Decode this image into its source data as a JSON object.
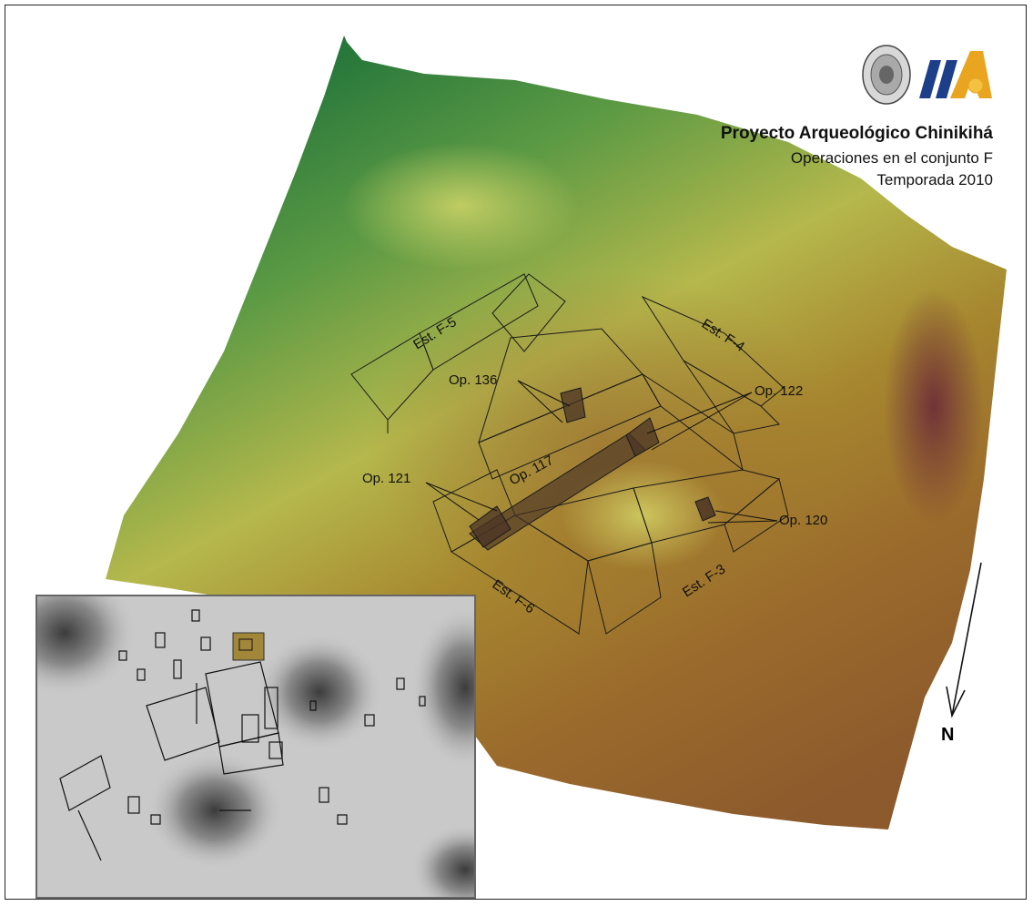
{
  "title": {
    "project": "Proyecto Arqueológico Chinikihá",
    "subtitle": "Operaciones en el conjunto F",
    "season": "Temporada 2010"
  },
  "logos": [
    "unam-seal-logo",
    "iia-logo"
  ],
  "structures": [
    "Est. F-5",
    "Est. F-4",
    "Est. F-6",
    "Est. F-3"
  ],
  "operations": [
    "Op. 136",
    "Op. 122",
    "Op. 117",
    "Op. 121",
    "Op. 120"
  ],
  "north_label": "N",
  "colors": {
    "terrain_green": "#1f6e3a",
    "terrain_yellow": "#b9b94e",
    "terrain_brown": "#8a5528",
    "terrain_red": "#7a3434",
    "excavation": "#4a3426"
  }
}
